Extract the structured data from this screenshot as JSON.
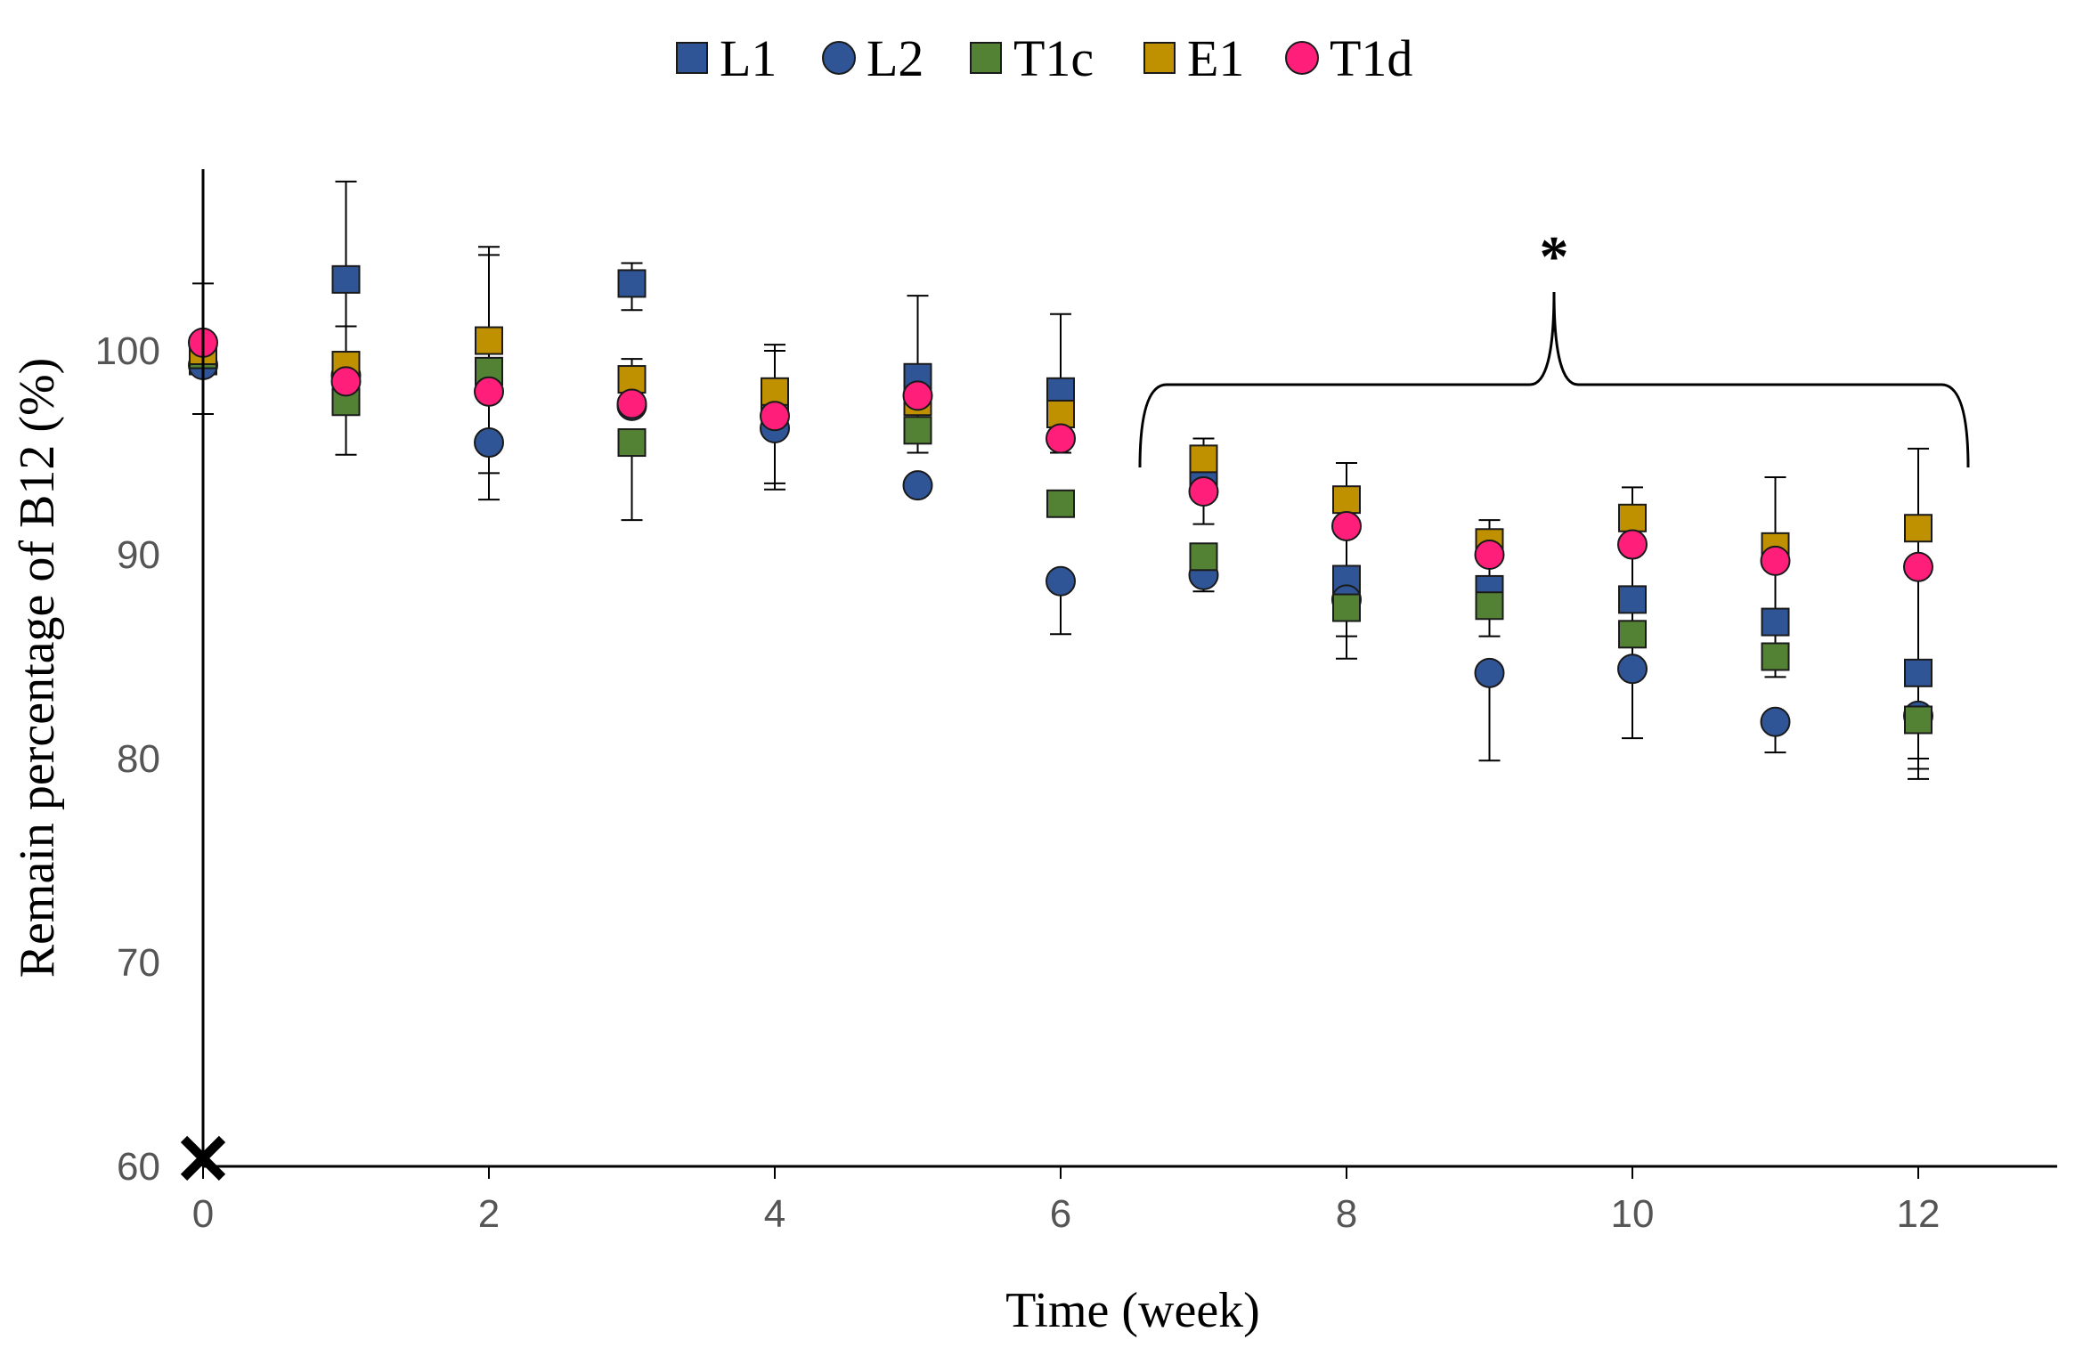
{
  "chart_data": {
    "type": "scatter",
    "title": "",
    "xlabel": "Time (week)",
    "ylabel": "Remain percentage of B12 (%)",
    "xlim": [
      0,
      13
    ],
    "ylim": [
      60,
      110
    ],
    "xticks": [
      0,
      2,
      4,
      6,
      8,
      10,
      12
    ],
    "yticks": [
      60,
      70,
      80,
      90,
      100
    ],
    "grid": false,
    "legend_position": "top-center",
    "annotation": "*",
    "annotation_range_weeks": [
      6.5,
      12.4
    ],
    "origin_marker": "✕",
    "x": [
      0,
      1,
      2,
      3,
      4,
      5,
      6,
      7,
      8,
      9,
      10,
      11,
      12
    ],
    "series": [
      {
        "name": "L1",
        "marker": "square",
        "color": "#2f5597",
        "values": [
          99.5,
          103.5,
          99.0,
          103.3,
          97.5,
          98.7,
          98.0,
          93.5,
          88.8,
          88.3,
          87.8,
          86.7,
          84.2
        ],
        "err_upper": [
          0,
          108.3,
          104.7,
          104.3,
          100.0,
          102.7,
          101.8,
          95.7,
          94.5,
          91.7,
          93.3,
          93.8,
          95.2
        ],
        "err_lower": [
          0,
          99.7,
          94.0,
          102.0,
          93.5,
          95.0,
          95.0,
          91.5,
          86.0,
          86.0,
          84.5,
          84.0,
          80.0
        ]
      },
      {
        "name": "L2",
        "marker": "circle",
        "color": "#2f5597",
        "values": [
          99.3,
          98.8,
          95.5,
          97.3,
          96.2,
          93.4,
          88.7,
          89.0,
          87.8,
          84.2,
          84.4,
          81.8,
          82.1
        ],
        "err_upper": [
          0,
          0,
          0,
          0,
          0,
          0,
          0,
          0,
          0,
          0,
          0,
          0,
          0
        ],
        "err_lower": [
          0,
          0,
          92.7,
          0,
          93.2,
          0,
          86.1,
          88.2,
          0,
          79.9,
          81.0,
          80.3,
          79.5
        ]
      },
      {
        "name": "T1c",
        "marker": "square",
        "color": "#548235",
        "values": [
          99.8,
          97.5,
          99.0,
          95.5,
          97.8,
          96.1,
          92.5,
          89.9,
          87.4,
          87.5,
          86.1,
          85.0,
          81.9
        ],
        "err_upper": [
          103.3,
          0,
          0,
          0,
          0,
          0,
          0,
          0,
          0,
          0,
          0,
          0,
          0
        ],
        "err_lower": [
          96.9,
          94.9,
          0,
          91.7,
          0,
          0,
          0,
          0,
          84.9,
          0,
          0,
          0,
          79.0
        ]
      },
      {
        "name": "E1",
        "marker": "square",
        "color": "#bf9000",
        "values": [
          100.0,
          99.3,
          100.5,
          98.6,
          98.0,
          97.5,
          96.9,
          94.7,
          92.7,
          90.6,
          91.8,
          90.4,
          91.3
        ],
        "err_upper": [
          0,
          101.2,
          105.1,
          99.6,
          100.3,
          0,
          0,
          0,
          0,
          0,
          0,
          0,
          0
        ],
        "err_lower": [
          0,
          0,
          0,
          0,
          0,
          0,
          0,
          0,
          0,
          0,
          0,
          0,
          0
        ]
      },
      {
        "name": "T1d",
        "marker": "circle",
        "color": "#ff1f7a",
        "values": [
          100.4,
          98.5,
          98.0,
          97.4,
          96.8,
          97.8,
          95.7,
          93.1,
          91.4,
          90.0,
          90.5,
          89.7,
          89.4
        ],
        "err_upper": [
          0,
          0,
          0,
          0,
          0,
          0,
          0,
          0,
          0,
          0,
          0,
          0,
          0
        ],
        "err_lower": [
          0,
          0,
          0,
          0,
          0,
          0,
          0,
          0,
          0,
          0,
          0,
          0,
          0
        ]
      }
    ]
  }
}
